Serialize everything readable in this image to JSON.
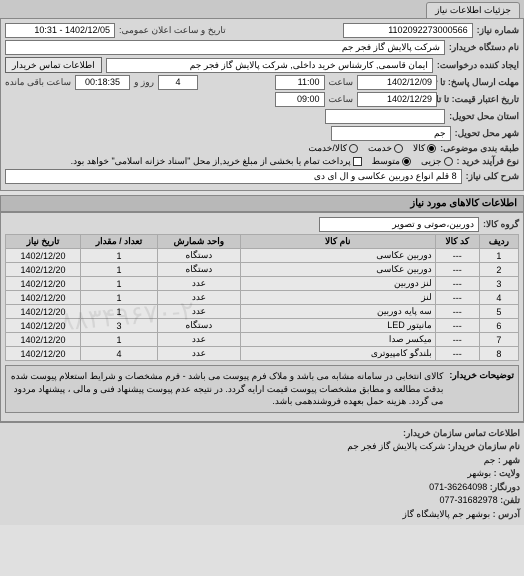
{
  "tab": "جزئیات اطلاعات نیاز",
  "header": {
    "reqNoLabel": "شماره نیاز:",
    "reqNo": "1102092273000566",
    "announceLabel": "تاریخ و ساعت اعلان عمومی:",
    "announce": "1402/12/05 - 10:31",
    "orgLabel": "نام دستگاه خریدار:",
    "org": "شرکت پالایش گاز فجر جم",
    "requesterLabel": "ایجاد کننده درخواست:",
    "requester": "ایمان قاسمی, کارشناس خرید داخلی, شرکت پالایش گاز فجر جم",
    "contactBtn": "اطلاعات تماس خریدار",
    "deadlineRespLabel": "مهلت ارسال پاسخ: تا تاریخ:",
    "deadlineRespDate": "1402/12/09",
    "timeLabel": "ساعت",
    "deadlineRespTime": "11:00",
    "remainLabel": "روز و",
    "remainDays": "4",
    "remainTime": "00:18:35",
    "remainAfter": "ساعت باقی مانده",
    "validLabel": "تاریخ اعتبار قیمت: تا تاریخ:",
    "validDate": "1402/12/29",
    "validTime": "09:00",
    "provinceLabel": "استان محل تحویل:",
    "province": "",
    "cityLabel": "شهر محل تحویل:",
    "city": "جم",
    "categoryLabel": "طبقه بندی موضوعی:",
    "catGoods": "کالا",
    "catService": "خدمت",
    "catBoth": "کالا/خدمت",
    "buyTypeLabel": "نوع فرآیند خرید :",
    "btSmall": "جزیی",
    "btMedium": "متوسط",
    "buyTypeNote": "پرداخت تمام یا بخشی از مبلغ خرید,از محل \"اسناد خزانه اسلامی\" خواهد بود.",
    "descLabel": "شرح کلی نیاز:",
    "desc": "8 قلم انواع دوربین عکاسی و ال ای دی"
  },
  "itemsTitle": "اطلاعات کالاهای مورد نیاز",
  "groupLabel": "گروه کالا:",
  "group": "دوربین،صوتی و تصویر",
  "cols": {
    "row": "ردیف",
    "code": "کد کالا",
    "name": "نام کالا",
    "unit": "واحد شمارش",
    "qty": "تعداد / مقدار",
    "date": "تاریخ نیاز"
  },
  "items": [
    {
      "r": "1",
      "code": "---",
      "name": "دوربین عکاسی",
      "unit": "دستگاه",
      "qty": "1",
      "date": "1402/12/20"
    },
    {
      "r": "2",
      "code": "---",
      "name": "دوربین عکاسی",
      "unit": "دستگاه",
      "qty": "1",
      "date": "1402/12/20"
    },
    {
      "r": "3",
      "code": "---",
      "name": "لنز دوربین",
      "unit": "عدد",
      "qty": "1",
      "date": "1402/12/20"
    },
    {
      "r": "4",
      "code": "---",
      "name": "لنز",
      "unit": "عدد",
      "qty": "1",
      "date": "1402/12/20"
    },
    {
      "r": "5",
      "code": "---",
      "name": "سه پایه دوربین",
      "unit": "عدد",
      "qty": "1",
      "date": "1402/12/20"
    },
    {
      "r": "6",
      "code": "---",
      "name": "مانیتور LED",
      "unit": "دستگاه",
      "qty": "3",
      "date": "1402/12/20"
    },
    {
      "r": "7",
      "code": "---",
      "name": "میکسر صدا",
      "unit": "عدد",
      "qty": "1",
      "date": "1402/12/20"
    },
    {
      "r": "8",
      "code": "---",
      "name": "بلندگو کامپیوتری",
      "unit": "عدد",
      "qty": "4",
      "date": "1402/12/20"
    }
  ],
  "noteLabel": "توضیحات خریدار:",
  "noteText": "کالای انتخابی در سامانه مشابه می باشد و ملاک فرم پیوست می باشد - فرم مشخصات و شرایط استعلام پیوست شده بدقت مطالعه و مطابق مشخصات پیوست قیمت ارایه گردد. در نتیجه عدم پیوست پیشنهاد فنی و مالی ، پیشنهاد مردود می گردد. هزینه حمل بعهده فروشندهمی باشد.",
  "buyer": {
    "title": "اطلاعات تماس سازمان خریدار:",
    "orgLabel": "نام سازمان خریدار:",
    "org": "شرکت پالایش گاز فجر جم",
    "cityLabel": "شهر :",
    "city": "جم",
    "provLabel": "ولایت :",
    "prov": "بوشهر",
    "faxLabel": "دورنگار:",
    "fax": "36264098-071",
    "phoneLabel": "تلفن:",
    "phone": "31682978-077",
    "addrLabel": "آدرس :",
    "addr": "بوشهر جم پالایشگاه گاز"
  }
}
